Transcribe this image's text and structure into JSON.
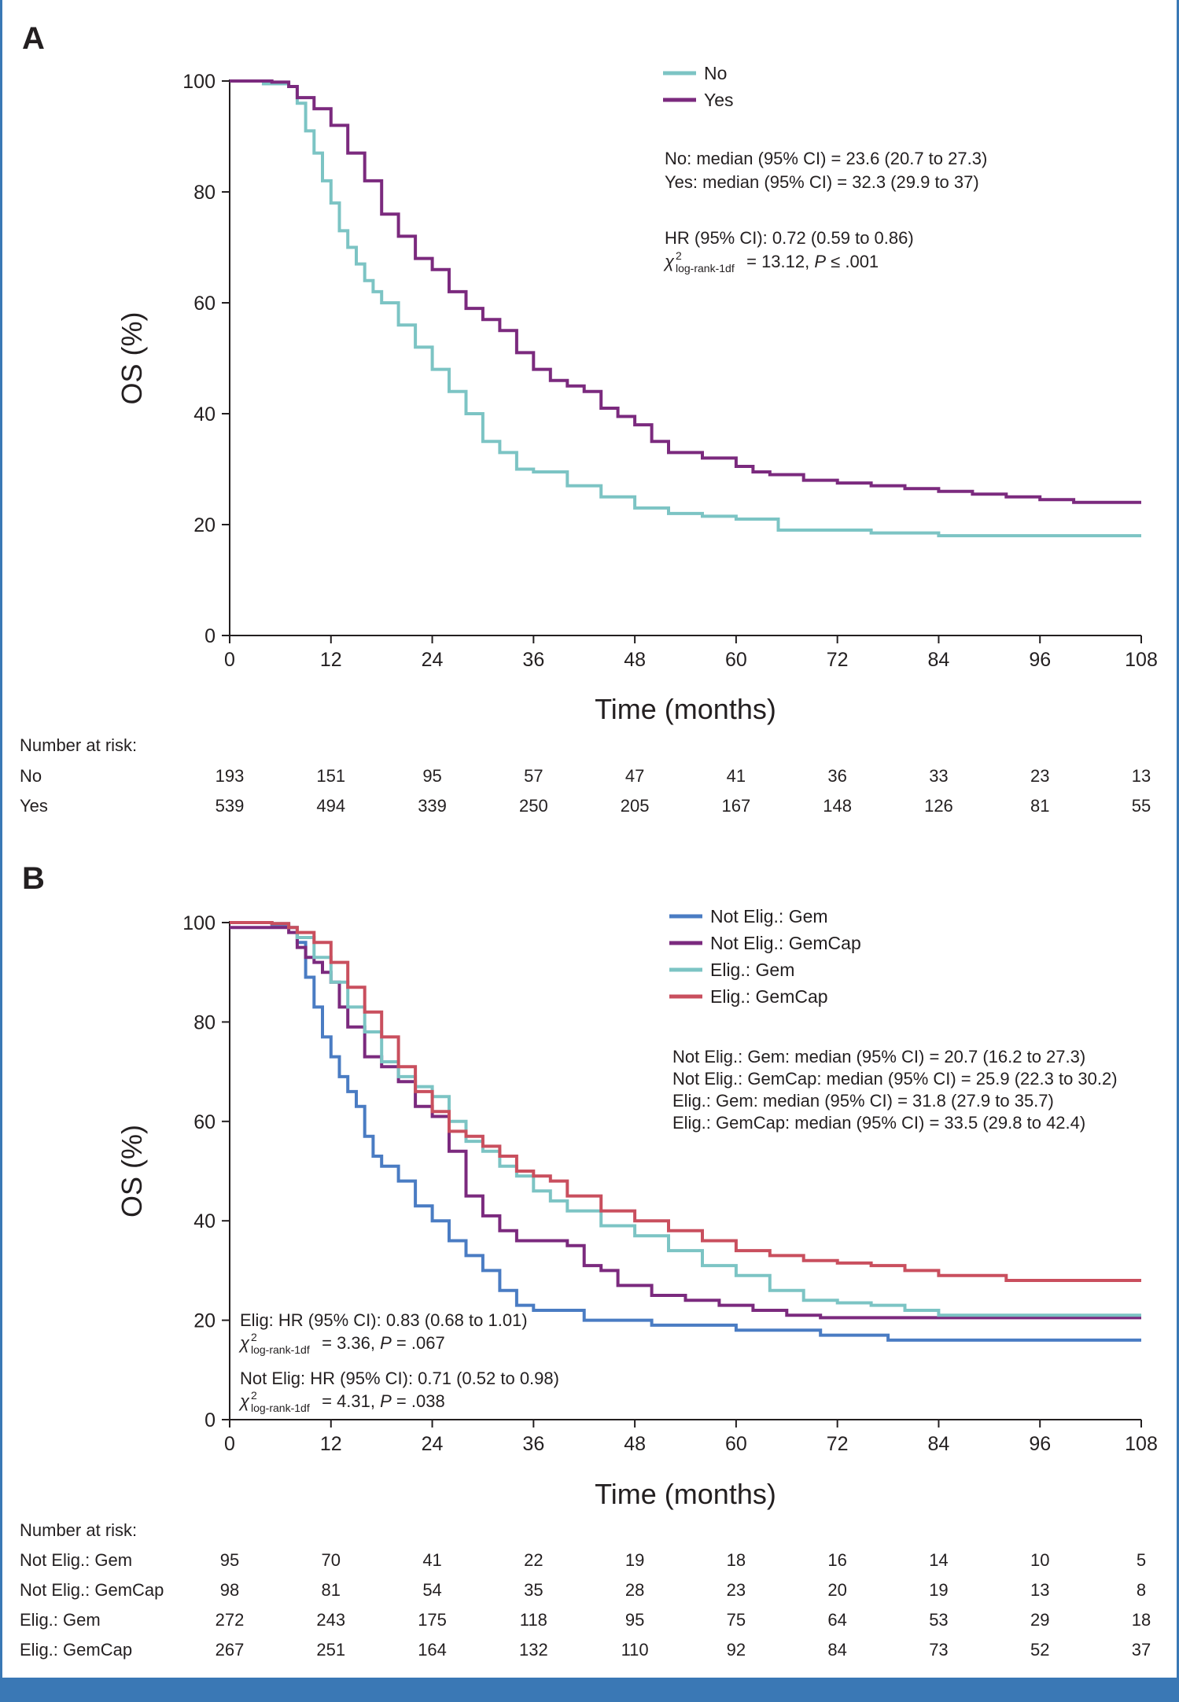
{
  "chart_data": [
    {
      "type": "line",
      "panel": "A",
      "xlabel": "Time (months)",
      "ylabel": "OS (%)",
      "xlim": [
        0,
        108
      ],
      "ylim": [
        0,
        100
      ],
      "x_ticks": [
        "0",
        "12",
        "24",
        "36",
        "48",
        "60",
        "72",
        "84",
        "96",
        "108"
      ],
      "y_ticks": [
        "0",
        "20",
        "40",
        "60",
        "80",
        "100"
      ],
      "legend_position": "top-right",
      "series": [
        {
          "name": "No",
          "color": "#7cc4c4",
          "x": [
            0,
            4,
            7,
            8,
            9,
            10,
            11,
            12,
            13,
            14,
            15,
            16,
            17,
            18,
            20,
            22,
            24,
            26,
            28,
            30,
            32,
            34,
            36,
            40,
            44,
            48,
            52,
            56,
            60,
            65,
            70,
            76,
            84,
            96,
            108
          ],
          "y": [
            100,
            99.5,
            99,
            96,
            91,
            87,
            82,
            78,
            73,
            70,
            67,
            64,
            62,
            60,
            56,
            52,
            48,
            44,
            40,
            35,
            33,
            30,
            29.5,
            27,
            25,
            23,
            22,
            21.5,
            21,
            19,
            19,
            18.5,
            18,
            18,
            18
          ]
        },
        {
          "name": "Yes",
          "color": "#7b2a7e",
          "x": [
            0,
            5,
            7,
            8,
            10,
            12,
            14,
            16,
            18,
            20,
            22,
            24,
            26,
            28,
            30,
            32,
            34,
            36,
            38,
            40,
            42,
            44,
            46,
            48,
            50,
            52,
            56,
            60,
            62,
            64,
            68,
            72,
            76,
            80,
            84,
            88,
            92,
            96,
            100,
            104,
            108
          ],
          "y": [
            100,
            99.8,
            99,
            97,
            95,
            92,
            87,
            82,
            76,
            72,
            68,
            66,
            62,
            59,
            57,
            55,
            51,
            48,
            46,
            45,
            44,
            41,
            39.5,
            38,
            35,
            33,
            32,
            30.5,
            29.5,
            29,
            28,
            27.5,
            27,
            26.5,
            26,
            25.5,
            25,
            24.5,
            24,
            24,
            24
          ]
        }
      ]
    },
    {
      "type": "line",
      "panel": "B",
      "xlabel": "Time (months)",
      "ylabel": "OS (%)",
      "xlim": [
        0,
        108
      ],
      "ylim": [
        0,
        100
      ],
      "x_ticks": [
        "0",
        "12",
        "24",
        "36",
        "48",
        "60",
        "72",
        "84",
        "96",
        "108"
      ],
      "y_ticks": [
        "0",
        "20",
        "40",
        "60",
        "80",
        "100"
      ],
      "legend_position": "top-right",
      "series": [
        {
          "name": "Not Elig.: Gem",
          "color": "#4a7cc3",
          "x": [
            0,
            5,
            7,
            8,
            9,
            10,
            11,
            12,
            13,
            14,
            15,
            16,
            17,
            18,
            20,
            22,
            24,
            26,
            28,
            30,
            32,
            34,
            36,
            40,
            42,
            46,
            50,
            55,
            60,
            65,
            70,
            78,
            84,
            96,
            108
          ],
          "y": [
            100,
            99.5,
            99,
            96,
            89,
            83,
            77,
            73,
            69,
            66,
            63,
            57,
            53,
            51,
            48,
            43,
            40,
            36,
            33,
            30,
            26,
            23,
            22,
            22,
            20,
            20,
            19,
            19,
            18,
            18,
            17,
            16,
            16,
            16,
            16
          ]
        },
        {
          "name": "Not Elig.: GemCap",
          "color": "#7b2a7e",
          "x": [
            0,
            3,
            7,
            8,
            9,
            10,
            11,
            12,
            13,
            14,
            16,
            18,
            20,
            22,
            24,
            26,
            28,
            30,
            32,
            34,
            36,
            40,
            42,
            44,
            46,
            50,
            54,
            58,
            62,
            66,
            70,
            80,
            96,
            108
          ],
          "y": [
            99,
            99,
            98,
            95,
            93,
            92,
            90,
            88,
            83,
            79,
            73,
            71,
            68,
            63,
            61,
            54,
            45,
            41,
            38,
            36,
            36,
            35,
            31,
            30,
            27,
            25,
            24,
            23,
            22,
            21,
            20.5,
            20.5,
            20.5,
            20.5
          ]
        },
        {
          "name": "Elig.: Gem",
          "color": "#7cc4c4",
          "x": [
            0,
            5,
            7,
            8,
            10,
            12,
            14,
            16,
            18,
            20,
            22,
            24,
            26,
            28,
            30,
            32,
            34,
            36,
            38,
            40,
            44,
            48,
            52,
            56,
            60,
            64,
            68,
            72,
            76,
            80,
            84,
            96,
            108
          ],
          "y": [
            100,
            99.8,
            99,
            97,
            93,
            88,
            83,
            78,
            72,
            69,
            67,
            65,
            60,
            56,
            54,
            51,
            49,
            46,
            44,
            42,
            39,
            37,
            34,
            31,
            29,
            26,
            24,
            23.5,
            23,
            22,
            21,
            21,
            21
          ]
        },
        {
          "name": "Elig.: GemCap",
          "color": "#c94f5e",
          "x": [
            0,
            5,
            7,
            8,
            10,
            12,
            14,
            16,
            18,
            20,
            22,
            24,
            26,
            28,
            30,
            32,
            34,
            36,
            38,
            40,
            44,
            48,
            52,
            56,
            60,
            64,
            68,
            72,
            76,
            80,
            84,
            92,
            96,
            108
          ],
          "y": [
            100,
            99.8,
            99,
            98,
            96,
            92,
            87,
            82,
            77,
            71,
            66,
            62,
            58,
            57,
            55,
            53,
            50,
            49,
            48,
            45,
            42,
            40,
            38,
            36,
            34,
            33,
            32,
            31.5,
            31,
            30,
            29,
            28,
            28,
            28
          ]
        }
      ]
    }
  ],
  "panels": [
    {
      "letter": "A",
      "legend": [
        {
          "label": "No",
          "color": "#7cc4c4"
        },
        {
          "label": "Yes",
          "color": "#7b2a7e"
        }
      ],
      "medians": [
        "No: median (95% CI) =  23.6 (20.7 to 27.3)",
        "Yes: median (95% CI) =  32.3 (29.9 to 37)"
      ],
      "stats": [
        {
          "hr": "HR (95% CI): 0.72 (0.59 to 0.86)",
          "chi": "χ",
          "sup": "2",
          "sub": "log-rank-1df",
          "chi_rest": " = 13.12, ",
          "p_label": "P",
          "p_rest": " ≤ .001"
        }
      ],
      "risk_title": "Number at risk:",
      "risk_rows": [
        {
          "label": "No",
          "values": [
            "193",
            "151",
            "95",
            "57",
            "47",
            "41",
            "36",
            "33",
            "23",
            "13"
          ]
        },
        {
          "label": "Yes",
          "values": [
            "539",
            "494",
            "339",
            "250",
            "205",
            "167",
            "148",
            "126",
            "81",
            "55"
          ]
        }
      ]
    },
    {
      "letter": "B",
      "legend": [
        {
          "label": "Not Elig.: Gem",
          "color": "#4a7cc3"
        },
        {
          "label": "Not Elig.: GemCap",
          "color": "#7b2a7e"
        },
        {
          "label": "Elig.: Gem",
          "color": "#7cc4c4"
        },
        {
          "label": "Elig.: GemCap",
          "color": "#c94f5e"
        }
      ],
      "medians": [
        "Not Elig.: Gem: median (95% CI) =  20.7 (16.2 to 27.3)",
        "Not Elig.: GemCap: median (95% CI) =  25.9 (22.3 to 30.2)",
        "Elig.: Gem: median (95% CI) =  31.8 (27.9 to 35.7)",
        "Elig.: GemCap: median (95% CI) =  33.5 (29.8 to 42.4)"
      ],
      "stats": [
        {
          "hr": "Elig: HR (95% CI): 0.83 (0.68 to 1.01)",
          "chi": "χ",
          "sup": "2",
          "sub": "log-rank-1df",
          "chi_rest": " = 3.36, ",
          "p_label": "P",
          "p_rest": " = .067"
        },
        {
          "hr": "Not Elig: HR (95% CI): 0.71 (0.52 to 0.98)",
          "chi": "χ",
          "sup": "2",
          "sub": "log-rank-1df",
          "chi_rest": " = 4.31, ",
          "p_label": "P",
          "p_rest": " = .038"
        }
      ],
      "risk_title": "Number at risk:",
      "risk_rows": [
        {
          "label": "Not Elig.: Gem",
          "values": [
            "95",
            "70",
            "41",
            "22",
            "19",
            "18",
            "16",
            "14",
            "10",
            "5"
          ]
        },
        {
          "label": "Not Elig.: GemCap",
          "values": [
            "98",
            "81",
            "54",
            "35",
            "28",
            "23",
            "20",
            "19",
            "13",
            "8"
          ]
        },
        {
          "label": "Elig.: Gem",
          "values": [
            "272",
            "243",
            "175",
            "118",
            "95",
            "75",
            "64",
            "53",
            "29",
            "18"
          ]
        },
        {
          "label": "Elig.: GemCap",
          "values": [
            "267",
            "251",
            "164",
            "132",
            "110",
            "92",
            "84",
            "73",
            "52",
            "37"
          ]
        }
      ]
    }
  ]
}
